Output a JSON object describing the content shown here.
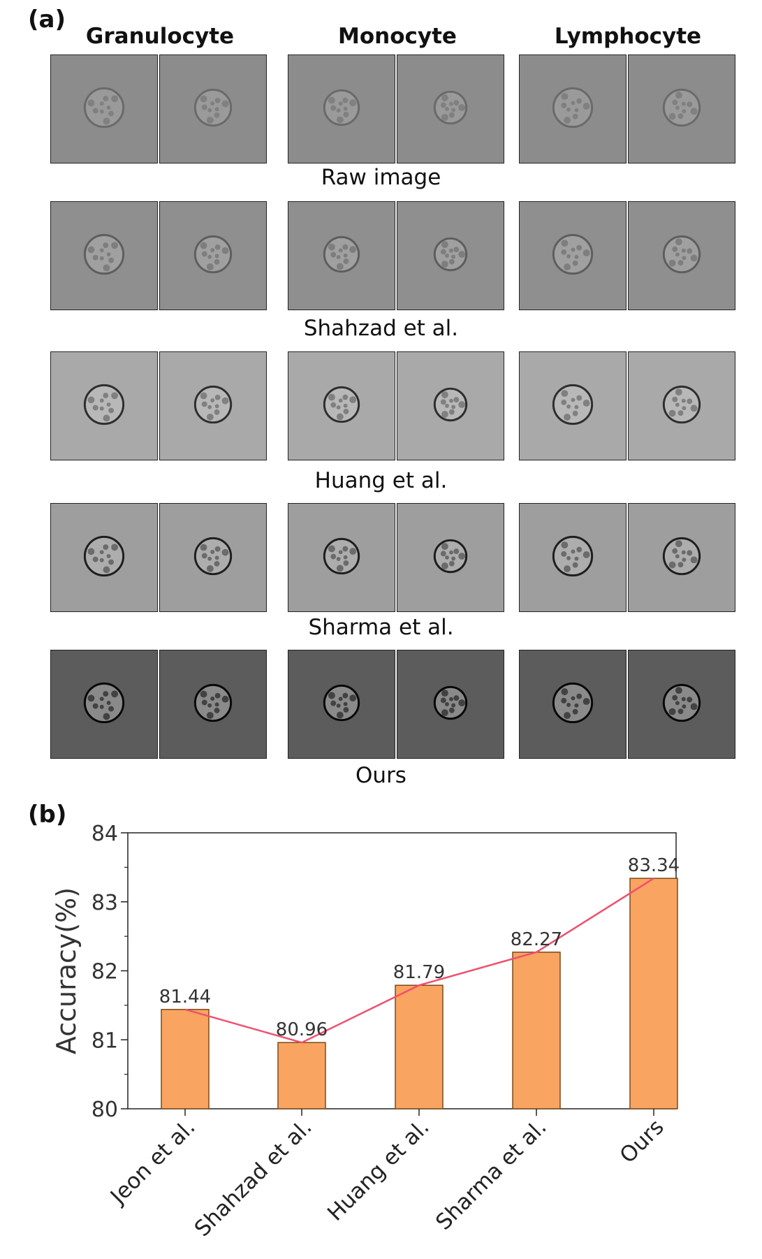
{
  "panel_a": {
    "label": "(a)",
    "columns": [
      "Granulocyte",
      "Monocyte",
      "Lymphocyte"
    ],
    "rows": [
      {
        "caption": "Raw image",
        "bg": "#8c8c8c",
        "cell": "#9a9a9a",
        "edge": "#6a6a6a",
        "nucleus": "#777777"
      },
      {
        "caption": "Shahzad et al.",
        "bg": "#8f8f8f",
        "cell": "#a0a0a0",
        "edge": "#5e5e5e",
        "nucleus": "#737373"
      },
      {
        "caption": "Huang et al.",
        "bg": "#a9a9a9",
        "cell": "#b8b8b8",
        "edge": "#2e2e2e",
        "nucleus": "#6e6e6e"
      },
      {
        "caption": "Sharma et al.",
        "bg": "#9e9e9e",
        "cell": "#adadad",
        "edge": "#1e1e1e",
        "nucleus": "#555555"
      },
      {
        "caption": "Ours",
        "bg": "#5c5c5c",
        "cell": "#8a8a8a",
        "edge": "#080808",
        "nucleus": "#2a2a2a"
      }
    ]
  },
  "panel_b": {
    "label": "(b)"
  },
  "chart_data": {
    "type": "bar",
    "categories": [
      "Jeon et al.",
      "Shahzad et al.",
      "Huang et al.",
      "Sharma et al.",
      "Ours"
    ],
    "values": [
      81.44,
      80.96,
      81.79,
      82.27,
      83.34
    ],
    "value_labels": [
      "81.44",
      "80.96",
      "81.79",
      "82.27",
      "83.34"
    ],
    "ylabel": "Accuracy(%)",
    "xlabel": "",
    "ylim": [
      80,
      84
    ],
    "yticks": [
      80,
      81,
      82,
      83,
      84
    ],
    "bar_color": "#f9a460",
    "bar_edge": "#7a4a1a",
    "line_color": "#f0506e",
    "grid": false
  }
}
